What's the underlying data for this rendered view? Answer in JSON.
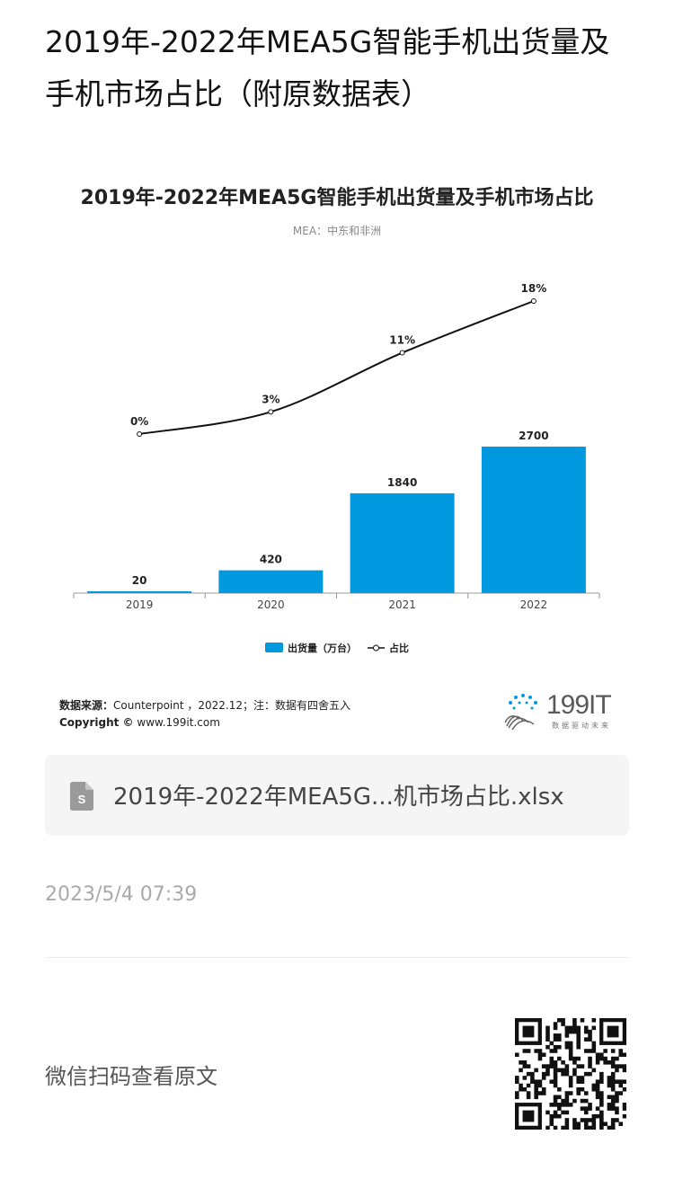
{
  "article": {
    "title": "2019年-2022年MEA5G智能手机出货量及手机市场占比（附原数据表）"
  },
  "chart_data": {
    "type": "bar",
    "title": "2019年-2022年MEA5G智能手机出货量及手机市场占比",
    "subtitle": "MEA：中东和非洲",
    "categories": [
      "2019",
      "2020",
      "2021",
      "2022"
    ],
    "series": [
      {
        "name": "出货量（万台）",
        "type": "bar",
        "values": [
          20,
          420,
          1840,
          2700
        ],
        "labels": [
          "20",
          "420",
          "1840",
          "2700"
        ],
        "color": "#0099e0"
      },
      {
        "name": "占比",
        "type": "line",
        "values": [
          0,
          3,
          11,
          18
        ],
        "labels": [
          "0%",
          "3%",
          "11%",
          "18%"
        ],
        "color": "#111111"
      }
    ],
    "grid": false,
    "legend_placement": "bottom-center",
    "source_label": "数据来源：",
    "source_text": "Counterpoint ，2022.12；注：数据有四舍五入",
    "copyright_label": "Copyright ©",
    "copyright_text": "www.199it.com",
    "logo_text": "199IT",
    "logo_tagline": "数据驱动未来"
  },
  "attachment": {
    "file_name": "2019年-2022年MEA5G...机市场占比.xlsx",
    "icon": "spreadsheet-file-icon"
  },
  "meta": {
    "date": "2023/5/4 07:39",
    "qr_hint": "微信扫码查看原文",
    "qr_icon": "qr-code-icon"
  }
}
